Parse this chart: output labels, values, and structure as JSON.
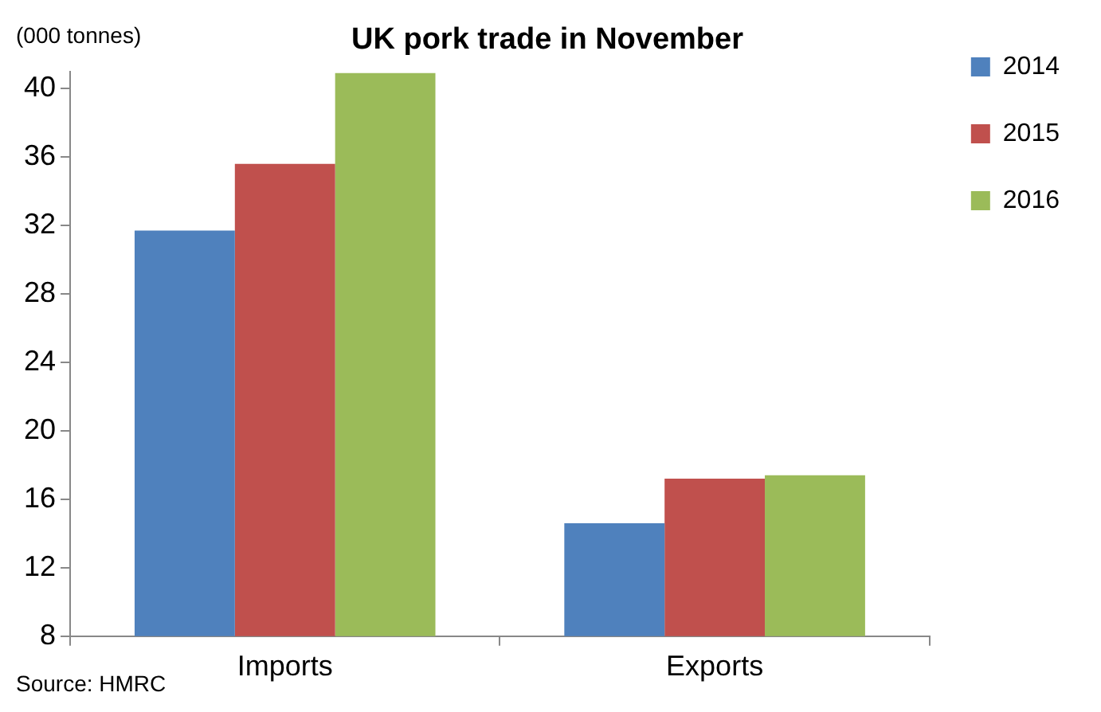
{
  "chart_data": {
    "type": "bar",
    "title": "UK pork trade in November",
    "ylabel": "(000 tonnes)",
    "categories": [
      "Imports",
      "Exports"
    ],
    "series": [
      {
        "name": "2014",
        "color": "#4f81bd",
        "values": [
          31.7,
          14.6
        ]
      },
      {
        "name": "2015",
        "color": "#c0504d",
        "values": [
          35.6,
          17.2
        ]
      },
      {
        "name": "2016",
        "color": "#9bbb59",
        "values": [
          40.9,
          17.4
        ]
      }
    ],
    "ylim": [
      8,
      41
    ],
    "yticks": [
      8,
      12,
      16,
      20,
      24,
      28,
      32,
      36,
      40
    ],
    "grid": false,
    "legend": "top right",
    "annotations": [
      "Source: HMRC"
    ]
  }
}
